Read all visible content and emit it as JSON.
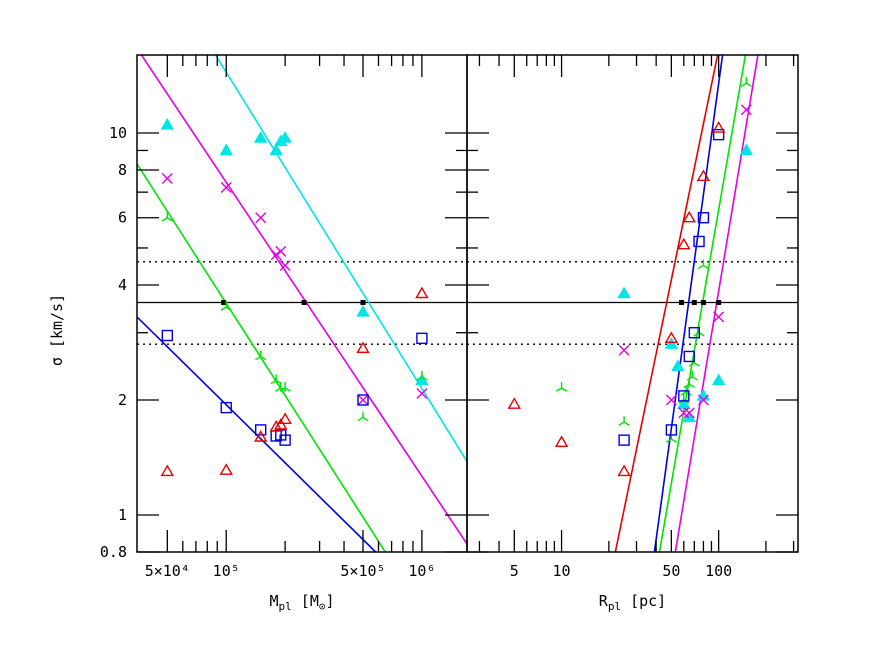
{
  "chart_data": {
    "type": "scatter",
    "ylabel": "σ [km/s]",
    "y_scale": "log",
    "y_range": [
      0.8,
      16
    ],
    "y_ticks": [
      {
        "value": 0.8,
        "label": "0.8"
      },
      {
        "value": 1,
        "label": "1"
      },
      {
        "value": 2,
        "label": "2"
      },
      {
        "value": 4,
        "label": "4"
      },
      {
        "value": 6,
        "label": "6"
      },
      {
        "value": 8,
        "label": "8"
      },
      {
        "value": 10,
        "label": "10"
      }
    ],
    "y_minor_ticks": [
      3,
      5,
      7,
      9
    ],
    "hlines": [
      {
        "value": 3.6,
        "style": "solid",
        "color": "#000000"
      },
      {
        "value": 4.6,
        "style": "dotted",
        "color": "#000000"
      },
      {
        "value": 2.8,
        "style": "dotted",
        "color": "#000000"
      }
    ],
    "panels": [
      {
        "name": "left",
        "xlabel": {
          "main": "M",
          "sub1": "pl",
          "bracket_open": " [M",
          "sub2": "⊙",
          "bracket_close": "]"
        },
        "x_scale": "log",
        "x_range": [
          35000,
          1700000
        ],
        "x_ticks": [
          {
            "value": 50000,
            "label": "5×10⁴"
          },
          {
            "value": 100000,
            "label": "10⁵"
          },
          {
            "value": 500000,
            "label": "5×10⁵"
          },
          {
            "value": 1000000,
            "label": "10⁶"
          }
        ],
        "x_minor_ticks": [
          60000,
          70000,
          80000,
          90000,
          200000,
          300000,
          400000,
          600000,
          700000,
          800000,
          900000
        ],
        "fit_lines": [
          {
            "color": "#00e5e5",
            "x": [
              85000,
              1700000
            ],
            "y": [
              16.5,
              1.38
            ]
          },
          {
            "color": "#e500e5",
            "x": [
              36000,
              1700000
            ],
            "y": [
              16.3,
              0.84
            ]
          },
          {
            "color": "#00e500",
            "x": [
              35000,
              650000
            ],
            "y": [
              8.3,
              0.8
            ]
          },
          {
            "color": "#0000e5",
            "x": [
              35000,
              580000
            ],
            "y": [
              3.3,
              0.8
            ]
          }
        ],
        "crossings": [
          {
            "x": 97000,
            "y": 3.6
          },
          {
            "x": 250000,
            "y": 3.6
          },
          {
            "x": 500000,
            "y": 3.6
          }
        ],
        "series": [
          {
            "marker": "triangle-filled",
            "color": "#00e5e5",
            "points": [
              [
                50000,
                10.5
              ],
              [
                100000,
                9.0
              ],
              [
                150000,
                9.7
              ],
              [
                180000,
                9.0
              ],
              [
                190000,
                9.5
              ],
              [
                200000,
                9.7
              ],
              [
                500000,
                3.4
              ],
              [
                1000000,
                2.25
              ]
            ]
          },
          {
            "marker": "cross",
            "color": "#e500e5",
            "points": [
              [
                50000,
                7.6
              ],
              [
                100000,
                7.2
              ],
              [
                150000,
                6.0
              ],
              [
                180000,
                4.8
              ],
              [
                190000,
                4.9
              ],
              [
                200000,
                4.5
              ],
              [
                500000,
                2.0
              ],
              [
                1000000,
                2.08
              ]
            ]
          },
          {
            "marker": "tripod",
            "color": "#00e500",
            "points": [
              [
                50000,
                6.0
              ],
              [
                100000,
                3.5
              ],
              [
                150000,
                2.6
              ],
              [
                180000,
                2.25
              ],
              [
                190000,
                2.15
              ],
              [
                200000,
                2.15
              ],
              [
                500000,
                1.8
              ],
              [
                1000000,
                2.3
              ]
            ]
          },
          {
            "marker": "square",
            "color": "#0000e5",
            "points": [
              [
                50000,
                2.95
              ],
              [
                100000,
                1.91
              ],
              [
                150000,
                1.67
              ],
              [
                180000,
                1.61
              ],
              [
                190000,
                1.62
              ],
              [
                200000,
                1.57
              ],
              [
                500000,
                2.0
              ],
              [
                1000000,
                2.9
              ]
            ]
          },
          {
            "marker": "triangle-open",
            "color": "#e50000",
            "points": [
              [
                50000,
                1.3
              ],
              [
                100000,
                1.31
              ],
              [
                150000,
                1.6
              ],
              [
                180000,
                1.7
              ],
              [
                190000,
                1.72
              ],
              [
                200000,
                1.78
              ],
              [
                500000,
                2.73
              ],
              [
                1000000,
                3.8
              ]
            ]
          }
        ]
      },
      {
        "name": "right",
        "xlabel": {
          "main": "R",
          "sub1": "pl",
          "bracket_open": " [pc]",
          "sub2": "",
          "bracket_close": ""
        },
        "x_scale": "log",
        "x_range": [
          2.5,
          320
        ],
        "x_ticks": [
          {
            "value": 5,
            "label": "5"
          },
          {
            "value": 10,
            "label": "10"
          },
          {
            "value": 50,
            "label": "50"
          },
          {
            "value": 100,
            "label": "100"
          }
        ],
        "x_minor_ticks": [
          3,
          4,
          6,
          7,
          8,
          9,
          20,
          30,
          40,
          60,
          70,
          80,
          90,
          200,
          300
        ],
        "fit_lines": [
          {
            "color": "#e50000",
            "x": [
              22,
              100
            ],
            "y": [
              0.8,
              16.5
            ]
          },
          {
            "color": "#0000e5",
            "x": [
              39,
              107
            ],
            "y": [
              0.8,
              16.5
            ]
          },
          {
            "color": "#00e500",
            "x": [
              42,
              150
            ],
            "y": [
              0.8,
              16.5
            ]
          },
          {
            "color": "#e500e5",
            "x": [
              53,
              180
            ],
            "y": [
              0.8,
              16.5
            ]
          }
        ],
        "crossings": [
          {
            "x": 58,
            "y": 3.6
          },
          {
            "x": 70,
            "y": 3.6
          },
          {
            "x": 80,
            "y": 3.6
          },
          {
            "x": 100,
            "y": 3.6
          }
        ],
        "series": [
          {
            "marker": "triangle-filled",
            "color": "#00e5e5",
            "points": [
              [
                25,
                3.8
              ],
              [
                50,
                2.8
              ],
              [
                55,
                2.45
              ],
              [
                60,
                1.95
              ],
              [
                65,
                1.8
              ],
              [
                80,
                2.05
              ],
              [
                100,
                2.25
              ],
              [
                150,
                9.0
              ]
            ]
          },
          {
            "marker": "cross",
            "color": "#e500e5",
            "points": [
              [
                25,
                2.7
              ],
              [
                50,
                2.0
              ],
              [
                60,
                1.85
              ],
              [
                65,
                1.85
              ],
              [
                80,
                2.0
              ],
              [
                100,
                3.3
              ],
              [
                150,
                11.5
              ]
            ]
          },
          {
            "marker": "tripod",
            "color": "#00e500",
            "points": [
              [
                10,
                2.15
              ],
              [
                25,
                1.75
              ],
              [
                50,
                1.58
              ],
              [
                60,
                2.0
              ],
              [
                62,
                2.1
              ],
              [
                65,
                2.2
              ],
              [
                68,
                2.3
              ],
              [
                70,
                2.5
              ],
              [
                75,
                3.0
              ],
              [
                80,
                4.5
              ],
              [
                150,
                13.5
              ]
            ]
          },
          {
            "marker": "square",
            "color": "#0000e5",
            "points": [
              [
                25,
                1.57
              ],
              [
                50,
                1.67
              ],
              [
                60,
                2.05
              ],
              [
                65,
                2.6
              ],
              [
                70,
                3.0
              ],
              [
                75,
                5.2
              ],
              [
                80,
                6.0
              ],
              [
                100,
                9.9
              ]
            ]
          },
          {
            "marker": "triangle-open",
            "color": "#e50000",
            "points": [
              [
                5,
                1.95
              ],
              [
                10,
                1.55
              ],
              [
                25,
                1.3
              ],
              [
                50,
                2.9
              ],
              [
                60,
                5.1
              ],
              [
                65,
                6.0
              ],
              [
                80,
                7.7
              ],
              [
                100,
                10.3
              ]
            ]
          }
        ]
      }
    ]
  }
}
